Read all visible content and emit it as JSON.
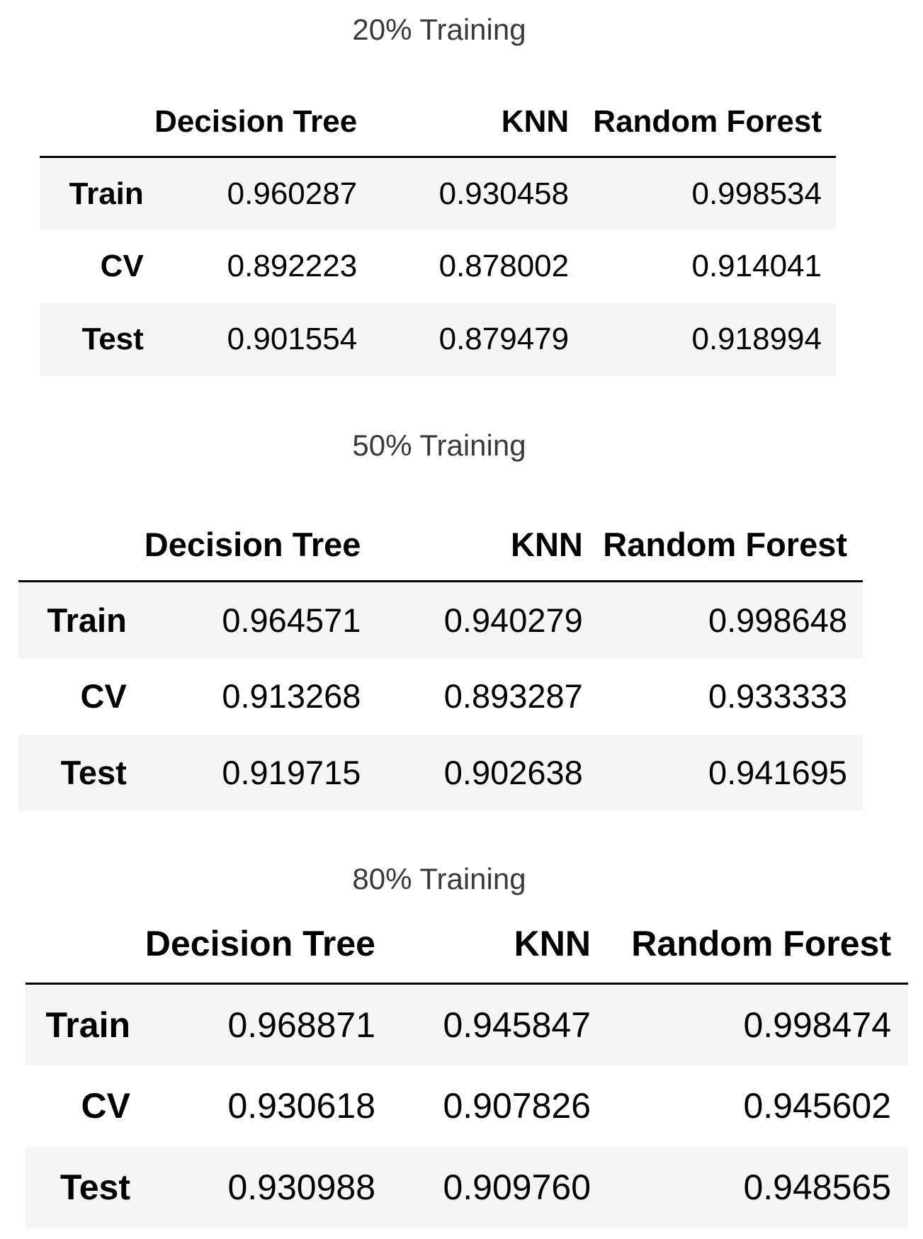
{
  "tables": [
    {
      "caption": "20% Training",
      "columns": [
        "Decision Tree",
        "KNN",
        "Random Forest"
      ],
      "rows": [
        {
          "label": "Train",
          "values": [
            "0.960287",
            "0.930458",
            "0.998534"
          ]
        },
        {
          "label": "CV",
          "values": [
            "0.892223",
            "0.878002",
            "0.914041"
          ]
        },
        {
          "label": "Test",
          "values": [
            "0.901554",
            "0.879479",
            "0.918994"
          ]
        }
      ]
    },
    {
      "caption": "50% Training",
      "columns": [
        "Decision Tree",
        "KNN",
        "Random Forest"
      ],
      "rows": [
        {
          "label": "Train",
          "values": [
            "0.964571",
            "0.940279",
            "0.998648"
          ]
        },
        {
          "label": "CV",
          "values": [
            "0.913268",
            "0.893287",
            "0.933333"
          ]
        },
        {
          "label": "Test",
          "values": [
            "0.919715",
            "0.902638",
            "0.941695"
          ]
        }
      ]
    },
    {
      "caption": "80% Training",
      "columns": [
        "Decision Tree",
        "KNN",
        "Random Forest"
      ],
      "rows": [
        {
          "label": "Train",
          "values": [
            "0.968871",
            "0.945847",
            "0.998474"
          ]
        },
        {
          "label": "CV",
          "values": [
            "0.930618",
            "0.907826",
            "0.945602"
          ]
        },
        {
          "label": "Test",
          "values": [
            "0.930988",
            "0.909760",
            "0.948565"
          ]
        }
      ]
    }
  ],
  "colors": {
    "header_rule": "#000000",
    "striped_row": "#f5f5f5",
    "caption_text": "#3a3a3a"
  }
}
